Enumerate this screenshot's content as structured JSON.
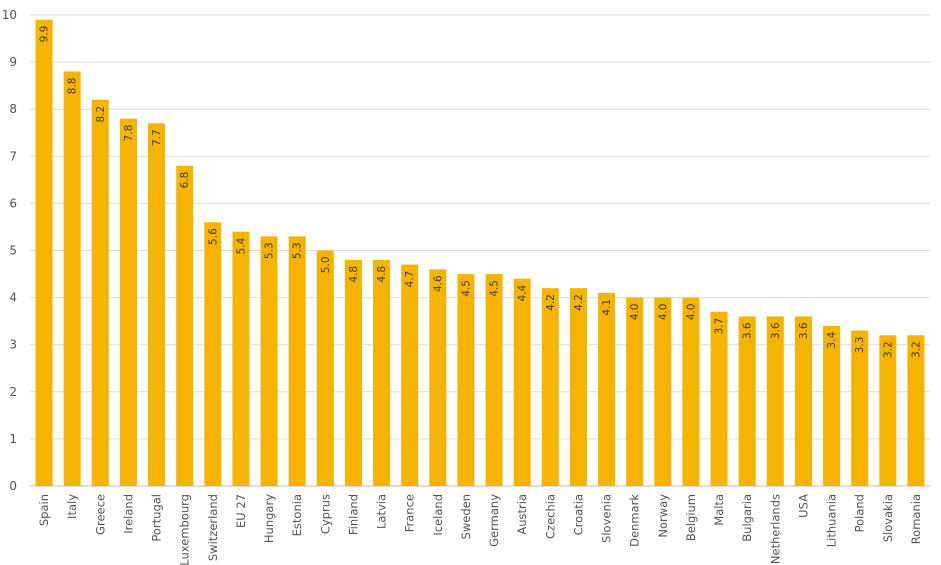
{
  "chart_data": {
    "type": "bar",
    "title": "",
    "xlabel": "",
    "ylabel": "",
    "ylim": [
      0,
      10
    ],
    "yticks": [
      0,
      1,
      2,
      3,
      4,
      5,
      6,
      7,
      8,
      9,
      10
    ],
    "grid": true,
    "bar_color": "#f6b400",
    "data_labels": true,
    "categories": [
      "Spain",
      "Italy",
      "Greece",
      "Ireland",
      "Portugal",
      "Luxembourg",
      "Switzerland",
      "EU 27",
      "Hungary",
      "Estonia",
      "Cyprus",
      "Finland",
      "Latvia",
      "France",
      "Iceland",
      "Sweden",
      "Germany",
      "Austria",
      "Czechia",
      "Croatia",
      "Slovenia",
      "Denmark",
      "Norway",
      "Belgium",
      "Malta",
      "Bulgaria",
      "Netherlands",
      "USA",
      "Lithuania",
      "Poland",
      "Slovakia",
      "Romania"
    ],
    "values": [
      9.9,
      8.8,
      8.2,
      7.8,
      7.7,
      6.8,
      5.6,
      5.4,
      5.3,
      5.3,
      5.0,
      4.8,
      4.8,
      4.7,
      4.6,
      4.5,
      4.5,
      4.4,
      4.2,
      4.2,
      4.1,
      4.0,
      4.0,
      4.0,
      3.7,
      3.6,
      3.6,
      3.6,
      3.4,
      3.3,
      3.2,
      3.2
    ],
    "value_labels": [
      "9.9",
      "8.8",
      "8.2",
      "7.8",
      "7.7",
      "6.8",
      "5.6",
      "5.4",
      "5.3",
      "5.3",
      "5.0",
      "4.8",
      "4.8",
      "4.7",
      "4.6",
      "4.5",
      "4.5",
      "4.4",
      "4.2",
      "4.2",
      "4.1",
      "4.0",
      "4.0",
      "4.0",
      "3.7",
      "3.6",
      "3.6",
      "3.6",
      "3.4",
      "3.3",
      "3.2",
      "3.2"
    ]
  }
}
